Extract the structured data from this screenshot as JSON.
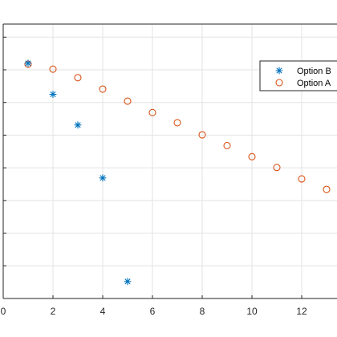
{
  "chart_data": {
    "type": "scatter",
    "title": "",
    "xlabel": "",
    "ylabel": "",
    "xlim": [
      0,
      13.5
    ],
    "ylim": [
      0,
      0.84
    ],
    "grid": true,
    "legend_position": "top-right",
    "x_ticks": [
      0,
      2,
      4,
      6,
      8,
      10,
      12
    ],
    "x_tick_labels": [
      "0",
      "2",
      "4",
      "6",
      "8",
      "10",
      "12"
    ],
    "y_gridlines": [
      0.1,
      0.2,
      0.3,
      0.4,
      0.5,
      0.6,
      0.7,
      0.8
    ],
    "series": [
      {
        "name": "Option B",
        "marker": "asterisk",
        "color": "#0072BD",
        "x": [
          1,
          2,
          3,
          4,
          5
        ],
        "y": [
          0.72,
          0.625,
          0.531,
          0.369,
          0.052
        ]
      },
      {
        "name": "Option A",
        "marker": "circle",
        "color": "#D95319",
        "x": [
          1,
          2,
          3,
          4,
          5,
          6,
          7,
          8,
          9,
          10,
          11,
          12,
          13
        ],
        "y": [
          0.717,
          0.702,
          0.676,
          0.641,
          0.604,
          0.569,
          0.538,
          0.501,
          0.468,
          0.434,
          0.401,
          0.366,
          0.334
        ]
      }
    ]
  }
}
